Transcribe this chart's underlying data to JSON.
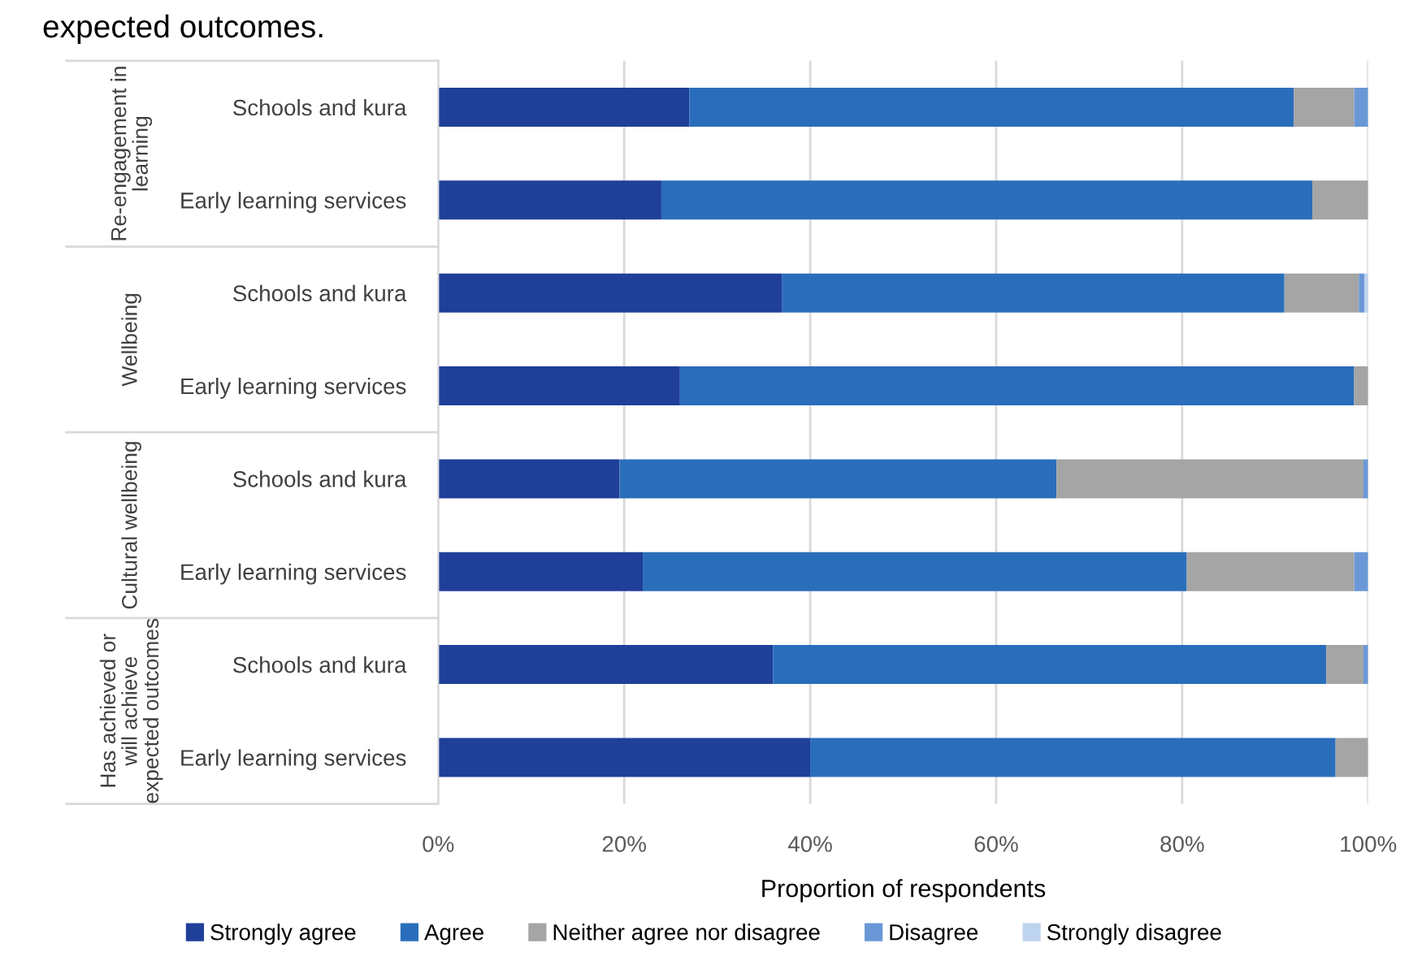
{
  "chart_data": {
    "type": "bar",
    "orientation": "horizontal",
    "stacked": true,
    "title": "expected outcomes.",
    "xlabel": "Proportion of respondents",
    "categories": [
      "Schools and kura",
      "Early learning services",
      "Schools and kura",
      "Early learning services",
      "Schools and kura",
      "Early learning services",
      "Schools and kura",
      "Early learning services"
    ],
    "annotations": [
      "Re-engagement in learning",
      "Wellbeing",
      "Cultural wellbeing",
      "Has achieved or will achieve expected outcomes"
    ],
    "series": [
      {
        "name": "Strongly agree",
        "color": "#1f3f99",
        "values": [
          27,
          24,
          37,
          26,
          19.5,
          22,
          36,
          40
        ]
      },
      {
        "name": "Agree",
        "color": "#2a6ebb",
        "values": [
          65,
          70,
          54,
          72.5,
          47,
          58.5,
          59.5,
          56.5
        ]
      },
      {
        "name": "Neither agree nor disagree",
        "color": "#a5a5a5",
        "values": [
          6.5,
          6,
          8,
          1.5,
          33,
          18,
          4,
          3.5
        ]
      },
      {
        "name": "Disagree",
        "color": "#6a98d6",
        "values": [
          1.5,
          0,
          0.6,
          0,
          0.5,
          1.5,
          0.5,
          0
        ]
      },
      {
        "name": "Strongly disagree",
        "color": "#bdd3ee",
        "values": [
          0,
          0,
          0.4,
          0,
          0,
          0,
          0,
          0
        ]
      }
    ],
    "xlim": [
      0,
      100
    ],
    "xticks": [
      {
        "value": 0,
        "label": "0%"
      },
      {
        "value": 20,
        "label": "20%"
      },
      {
        "value": 40,
        "label": "40%"
      },
      {
        "value": 60,
        "label": "60%"
      },
      {
        "value": 80,
        "label": "80%"
      },
      {
        "value": 100,
        "label": "100%"
      }
    ],
    "grid": "x",
    "legend": "bottom"
  }
}
